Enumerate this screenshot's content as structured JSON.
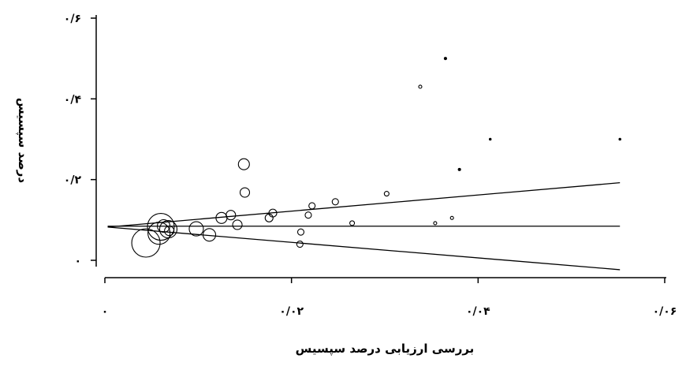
{
  "chart_data": {
    "type": "scatter",
    "subtype": "funnel-plot",
    "xlabel": "بررسی ارزیابی درصد سپسیس",
    "ylabel": "درصد سپسیس",
    "xlim": [
      0,
      0.06
    ],
    "ylim": [
      0,
      0.6
    ],
    "x_ticks": [
      {
        "value": 0,
        "label": "۰"
      },
      {
        "value": 0.02,
        "label": "۰/۰۲"
      },
      {
        "value": 0.04,
        "label": "۰/۰۴"
      },
      {
        "value": 0.06,
        "label": "۰/۰۶"
      }
    ],
    "y_ticks": [
      {
        "value": 0,
        "label": "۰"
      },
      {
        "value": 0.2,
        "label": "۰/۲"
      },
      {
        "value": 0.4,
        "label": "۰/۴"
      },
      {
        "value": 0.6,
        "label": "۰/۶"
      }
    ],
    "grid": false,
    "reference_lines": [
      {
        "name": "pooled",
        "x": [
          0.0003,
          0.0552
        ],
        "y": [
          0.0845,
          0.0845
        ]
      },
      {
        "name": "upper",
        "x": [
          0.0003,
          0.0552
        ],
        "y": [
          0.0824,
          0.1922
        ]
      },
      {
        "name": "lower",
        "x": [
          0.0003,
          0.0552
        ],
        "y": [
          0.0824,
          -0.0233
        ]
      }
    ],
    "points": [
      {
        "x": 0.0044,
        "y": 0.043,
        "size": 18
      },
      {
        "x": 0.006,
        "y": 0.083,
        "size": 17
      },
      {
        "x": 0.0058,
        "y": 0.067,
        "size": 14
      },
      {
        "x": 0.0068,
        "y": 0.077,
        "size": 11
      },
      {
        "x": 0.0063,
        "y": 0.085,
        "size": 8
      },
      {
        "x": 0.0069,
        "y": 0.073,
        "size": 6
      },
      {
        "x": 0.0098,
        "y": 0.078,
        "size": 9
      },
      {
        "x": 0.0112,
        "y": 0.063,
        "size": 8
      },
      {
        "x": 0.0125,
        "y": 0.105,
        "size": 7
      },
      {
        "x": 0.0135,
        "y": 0.112,
        "size": 6
      },
      {
        "x": 0.0142,
        "y": 0.088,
        "size": 6
      },
      {
        "x": 0.0149,
        "y": 0.238,
        "size": 7
      },
      {
        "x": 0.015,
        "y": 0.168,
        "size": 6
      },
      {
        "x": 0.0176,
        "y": 0.105,
        "size": 5
      },
      {
        "x": 0.018,
        "y": 0.117,
        "size": 5
      },
      {
        "x": 0.0209,
        "y": 0.04,
        "size": 4
      },
      {
        "x": 0.021,
        "y": 0.07,
        "size": 4
      },
      {
        "x": 0.0218,
        "y": 0.112,
        "size": 4
      },
      {
        "x": 0.0222,
        "y": 0.135,
        "size": 4
      },
      {
        "x": 0.0247,
        "y": 0.145,
        "size": 4
      },
      {
        "x": 0.0265,
        "y": 0.092,
        "size": 3
      },
      {
        "x": 0.0302,
        "y": 0.165,
        "size": 3
      },
      {
        "x": 0.0338,
        "y": 0.43,
        "size": 2
      },
      {
        "x": 0.0354,
        "y": 0.092,
        "size": 2
      },
      {
        "x": 0.0365,
        "y": 0.5,
        "size": 1.5
      },
      {
        "x": 0.0372,
        "y": 0.105,
        "size": 2
      },
      {
        "x": 0.038,
        "y": 0.225,
        "size": 1.5
      },
      {
        "x": 0.0413,
        "y": 0.3,
        "size": 1.2
      },
      {
        "x": 0.0552,
        "y": 0.3,
        "size": 1.2
      }
    ]
  }
}
